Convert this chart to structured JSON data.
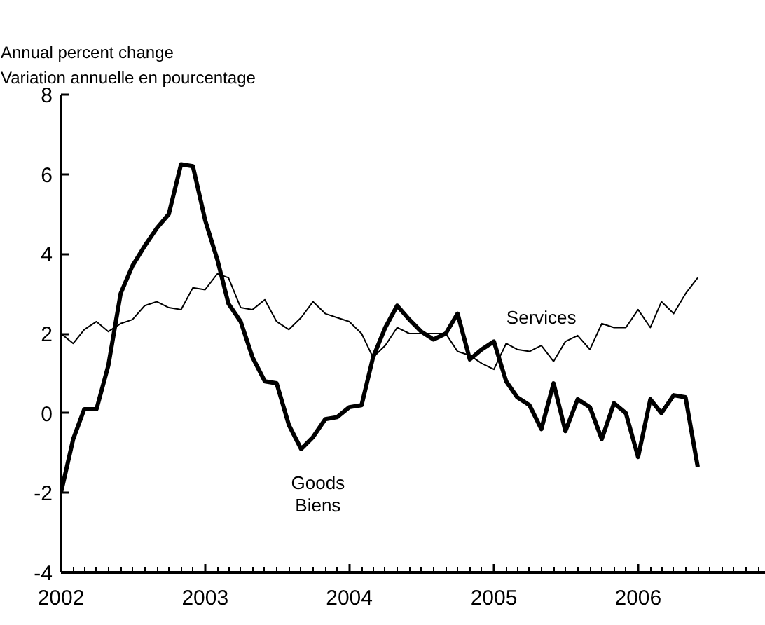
{
  "chart_data": {
    "type": "line",
    "ylabel": "Annual percent change\nVariation annuelle en pourcentage",
    "x": [
      "2002-01",
      "2002-02",
      "2002-03",
      "2002-04",
      "2002-05",
      "2002-06",
      "2002-07",
      "2002-08",
      "2002-09",
      "2002-10",
      "2002-11",
      "2002-12",
      "2003-01",
      "2003-02",
      "2003-03",
      "2003-04",
      "2003-05",
      "2003-06",
      "2003-07",
      "2003-08",
      "2003-09",
      "2003-10",
      "2003-11",
      "2003-12",
      "2004-01",
      "2004-02",
      "2004-03",
      "2004-04",
      "2004-05",
      "2004-06",
      "2004-07",
      "2004-08",
      "2004-09",
      "2004-10",
      "2004-11",
      "2004-12",
      "2005-01",
      "2005-02",
      "2005-03",
      "2005-04",
      "2005-05",
      "2005-06",
      "2005-07",
      "2005-08",
      "2005-09",
      "2005-10",
      "2005-11",
      "2005-12",
      "2006-01",
      "2006-02",
      "2006-03",
      "2006-04",
      "2006-05",
      "2006-06"
    ],
    "series": [
      {
        "name": "Goods\nBiens",
        "color": "#000000",
        "values": [
          -2.0,
          -0.65,
          0.1,
          0.1,
          1.2,
          3.0,
          3.7,
          4.2,
          4.65,
          5.0,
          6.25,
          6.2,
          4.85,
          3.85,
          2.75,
          2.3,
          1.4,
          0.8,
          0.75,
          -0.3,
          -0.9,
          -0.6,
          -0.15,
          -0.1,
          0.15,
          0.2,
          1.4,
          2.15,
          2.7,
          2.35,
          2.05,
          1.85,
          2.0,
          2.5,
          1.35,
          1.6,
          1.8,
          0.8,
          0.4,
          0.2,
          -0.4,
          0.75,
          -0.45,
          0.35,
          0.15,
          -0.65,
          0.25,
          0.0,
          -1.1,
          0.35,
          0.0,
          0.45,
          0.4,
          -1.35
        ]
      },
      {
        "name": "Services",
        "color": "#000000",
        "values": [
          2.0,
          1.75,
          2.1,
          2.3,
          2.05,
          2.25,
          2.35,
          2.7,
          2.8,
          2.65,
          2.6,
          3.15,
          3.1,
          3.5,
          3.4,
          2.65,
          2.6,
          2.85,
          2.3,
          2.1,
          2.4,
          2.8,
          2.5,
          2.4,
          2.3,
          2.0,
          1.4,
          1.7,
          2.15,
          2.0,
          2.0,
          2.0,
          2.0,
          1.55,
          1.45,
          1.25,
          1.1,
          1.75,
          1.6,
          1.55,
          1.7,
          1.3,
          1.8,
          1.95,
          1.6,
          2.25,
          2.15,
          2.15,
          2.6,
          2.15,
          2.8,
          2.5,
          3.0,
          3.4
        ]
      }
    ],
    "xlim": [
      "2002-01-01",
      "2006-11-20"
    ],
    "xticks": [
      {
        "value": "2002-01",
        "label": "2002"
      },
      {
        "value": "2003-01",
        "label": "2003"
      },
      {
        "value": "2004-01",
        "label": "2004"
      },
      {
        "value": "2005-01",
        "label": "2005"
      },
      {
        "value": "2006-01",
        "label": "2006"
      }
    ],
    "ylim": [
      -4,
      8
    ],
    "yticks": [
      -4,
      -2,
      0,
      2,
      4,
      6,
      8
    ],
    "grid": false
  }
}
